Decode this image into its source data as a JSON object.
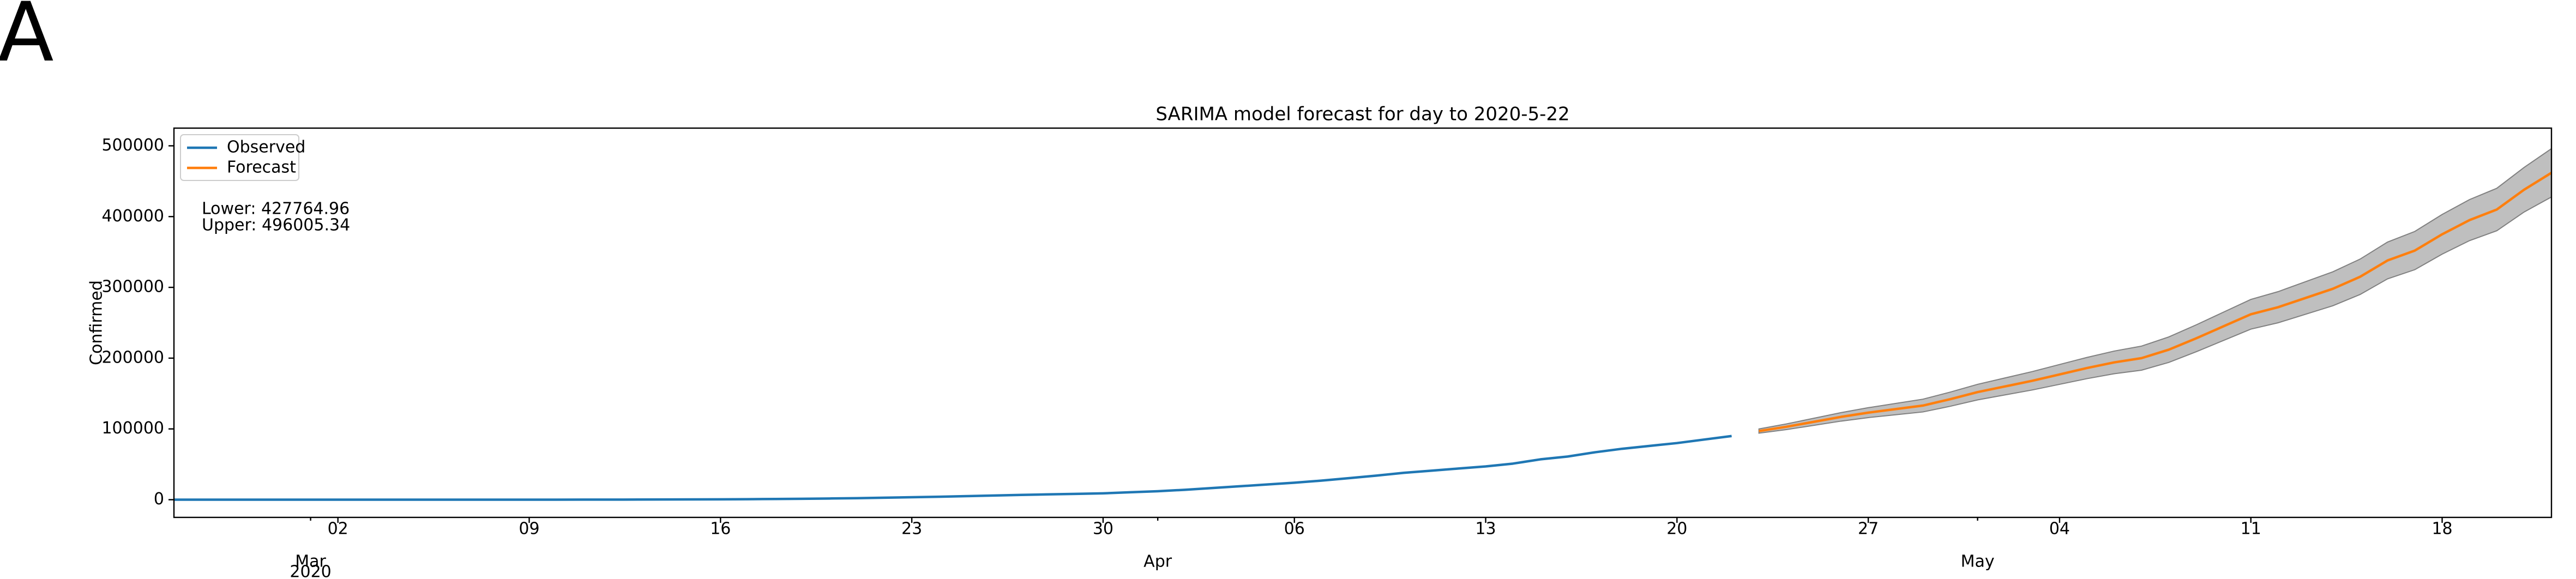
{
  "panel_label": "A",
  "chart_data": {
    "type": "line",
    "title": "SARIMA model forecast for day to 2020-5-22",
    "y_label": "Confirmed",
    "xlim": [
      "2020-02-25",
      "2020-05-22"
    ],
    "ylim": [
      -25000,
      525000
    ],
    "yticks": [
      0,
      100000,
      200000,
      300000,
      400000,
      500000
    ],
    "xticks": [
      {
        "value": "2020-03-02",
        "label": "02"
      },
      {
        "value": "2020-03-09",
        "label": "09"
      },
      {
        "value": "2020-03-16",
        "label": "16"
      },
      {
        "value": "2020-03-23",
        "label": "23"
      },
      {
        "value": "2020-03-30",
        "label": "30"
      },
      {
        "value": "2020-04-06",
        "label": "06"
      },
      {
        "value": "2020-04-13",
        "label": "13"
      },
      {
        "value": "2020-04-20",
        "label": "20"
      },
      {
        "value": "2020-04-27",
        "label": "27"
      },
      {
        "value": "2020-05-04",
        "label": "04"
      },
      {
        "value": "2020-05-11",
        "label": "11"
      },
      {
        "value": "2020-05-18",
        "label": "18"
      }
    ],
    "xticks_secondary": [
      {
        "value": "2020-03-01",
        "label": "Mar"
      },
      {
        "value": "2020-04-01",
        "label": "Apr"
      },
      {
        "value": "2020-05-01",
        "label": "May"
      }
    ],
    "x_year_label": "2020",
    "legend": "upper left",
    "annotations": [
      "Lower: 427764.96",
      "Upper: 496005.34"
    ],
    "band_color": "#808080",
    "series": [
      {
        "name": "Observed",
        "color": "#1f77b4",
        "x": [
          "2020-02-25",
          "2020-02-26",
          "2020-02-27",
          "2020-02-28",
          "2020-02-29",
          "2020-03-01",
          "2020-03-02",
          "2020-03-03",
          "2020-03-04",
          "2020-03-05",
          "2020-03-06",
          "2020-03-07",
          "2020-03-08",
          "2020-03-09",
          "2020-03-10",
          "2020-03-11",
          "2020-03-12",
          "2020-03-13",
          "2020-03-14",
          "2020-03-15",
          "2020-03-16",
          "2020-03-17",
          "2020-03-18",
          "2020-03-19",
          "2020-03-20",
          "2020-03-21",
          "2020-03-22",
          "2020-03-23",
          "2020-03-24",
          "2020-03-25",
          "2020-03-26",
          "2020-03-27",
          "2020-03-28",
          "2020-03-29",
          "2020-03-30",
          "2020-03-31",
          "2020-04-01",
          "2020-04-02",
          "2020-04-03",
          "2020-04-04",
          "2020-04-05",
          "2020-04-06",
          "2020-04-07",
          "2020-04-08",
          "2020-04-09",
          "2020-04-10",
          "2020-04-11",
          "2020-04-12",
          "2020-04-13",
          "2020-04-14",
          "2020-04-15",
          "2020-04-16",
          "2020-04-17",
          "2020-04-18",
          "2020-04-19",
          "2020-04-20",
          "2020-04-21",
          "2020-04-22"
        ],
        "values": [
          2,
          2,
          2,
          2,
          4,
          4,
          5,
          7,
          9,
          12,
          14,
          18,
          21,
          28,
          36,
          100,
          150,
          200,
          300,
          400,
          550,
          750,
          1000,
          1300,
          1700,
          2200,
          2800,
          3500,
          4200,
          5000,
          5900,
          6800,
          7500,
          8200,
          9000,
          10500,
          12000,
          14000,
          16500,
          19000,
          21500,
          24000,
          27000,
          30500,
          34000,
          38000,
          41000,
          44000,
          47000,
          51000,
          57000,
          61000,
          67000,
          72000,
          76000,
          80000,
          85000,
          90000
        ]
      },
      {
        "name": "Forecast",
        "color": "#ff7f0e",
        "x": [
          "2020-04-23",
          "2020-04-24",
          "2020-04-25",
          "2020-04-26",
          "2020-04-27",
          "2020-04-28",
          "2020-04-29",
          "2020-04-30",
          "2020-05-01",
          "2020-05-02",
          "2020-05-03",
          "2020-05-04",
          "2020-05-05",
          "2020-05-06",
          "2020-05-07",
          "2020-05-08",
          "2020-05-09",
          "2020-05-10",
          "2020-05-11",
          "2020-05-12",
          "2020-05-13",
          "2020-05-14",
          "2020-05-15",
          "2020-05-16",
          "2020-05-17",
          "2020-05-18",
          "2020-05-19",
          "2020-05-20",
          "2020-05-21",
          "2020-05-22"
        ],
        "values": [
          97000,
          103000,
          110000,
          117000,
          123000,
          128000,
          133000,
          142000,
          152000,
          160000,
          168000,
          177000,
          186000,
          194000,
          200000,
          212000,
          228000,
          245000,
          262000,
          272000,
          285000,
          298000,
          315000,
          338000,
          352000,
          375000,
          395000,
          410000,
          438000,
          461885.15
        ],
        "lower": [
          94000,
          99000,
          105000,
          111000,
          116000,
          120000,
          124000,
          132000,
          141000,
          148000,
          155000,
          163000,
          171000,
          178000,
          183000,
          194000,
          209000,
          225000,
          241000,
          250000,
          262000,
          274000,
          290000,
          312000,
          325000,
          347000,
          366000,
          380000,
          406500,
          427764.96
        ],
        "upper": [
          100000,
          107000,
          115000,
          123000,
          130000,
          136000,
          142000,
          152000,
          163000,
          172000,
          181000,
          191000,
          201000,
          210000,
          217000,
          230000,
          247000,
          265000,
          283000,
          294000,
          308000,
          322000,
          340000,
          364000,
          379000,
          403000,
          424000,
          440000,
          469500,
          496005.34
        ]
      }
    ]
  }
}
